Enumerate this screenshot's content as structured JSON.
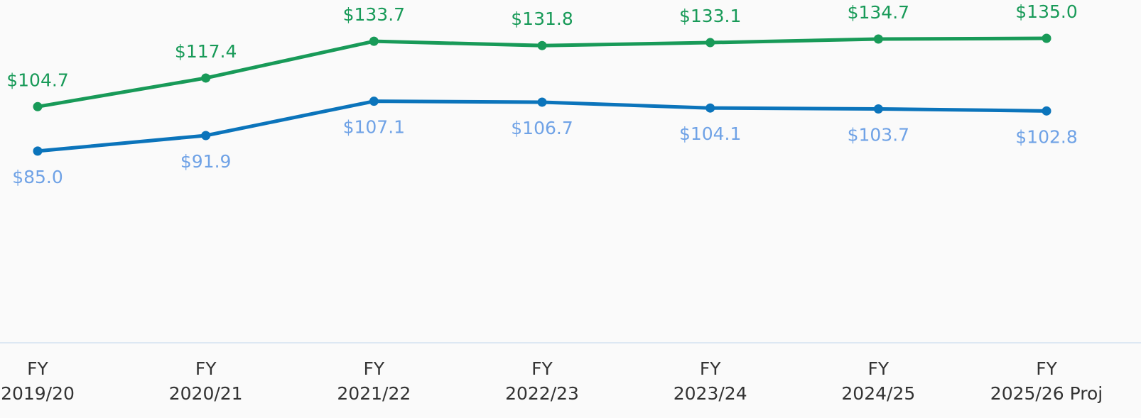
{
  "chart_data": {
    "type": "line",
    "categories": [
      [
        "FY",
        "2019/20"
      ],
      [
        "FY",
        "2020/21"
      ],
      [
        "FY",
        "2021/22"
      ],
      [
        "FY",
        "2022/23"
      ],
      [
        "FY",
        "2023/24"
      ],
      [
        "FY",
        "2024/25"
      ],
      [
        "FY",
        "2025/26 Proj"
      ]
    ],
    "series": [
      {
        "color": "#189a58",
        "label_color": "#189a58",
        "label_position": "above",
        "values": [
          104.7,
          117.4,
          133.7,
          131.8,
          133.1,
          134.7,
          135.0
        ],
        "value_labels": [
          "$104.7",
          "$117.4",
          "$133.7",
          "$131.8",
          "$133.1",
          "$134.7",
          "$135.0"
        ]
      },
      {
        "color": "#0b74bb",
        "label_color": "#6fa2e6",
        "label_position": "below",
        "values": [
          85.0,
          91.9,
          107.1,
          106.7,
          104.1,
          103.7,
          102.8
        ],
        "value_labels": [
          "$85.0",
          "$91.9",
          "$107.1",
          "$106.7",
          "$104.1",
          "$103.7",
          "$102.8"
        ]
      }
    ],
    "ylim": [
      0,
      152
    ]
  }
}
